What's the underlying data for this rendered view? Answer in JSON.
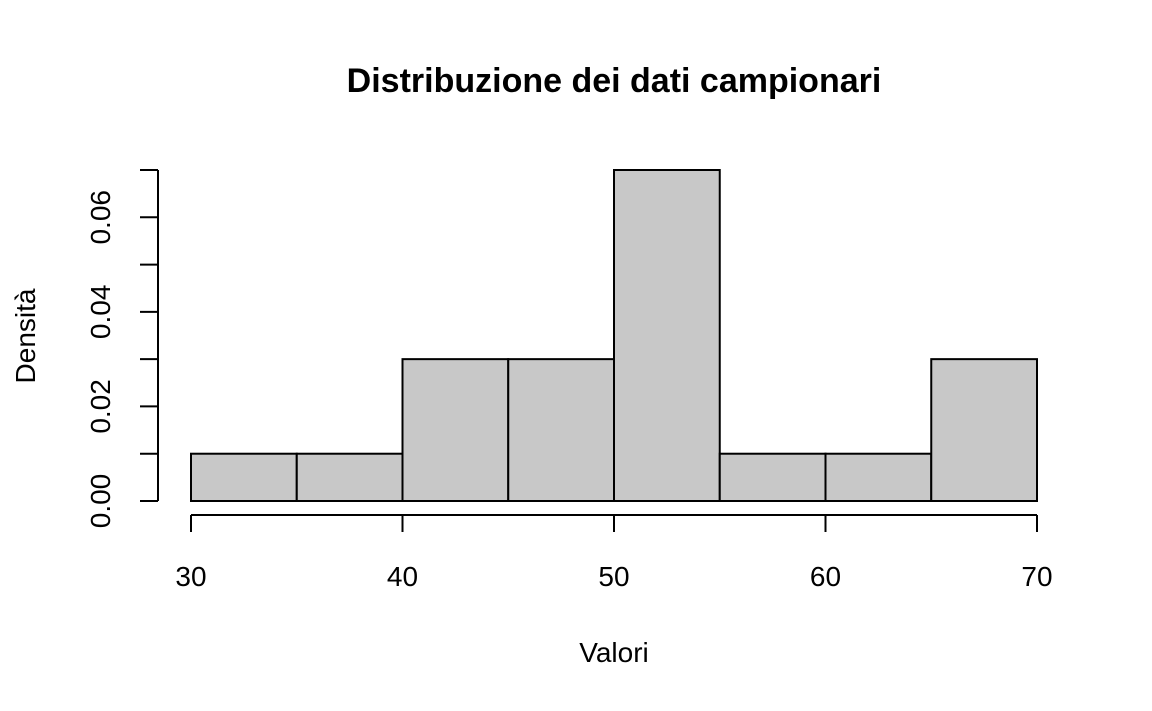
{
  "chart_data": {
    "type": "bar",
    "subtype": "histogram",
    "title": "Distribuzione dei dati campionari",
    "xlabel": "Valori",
    "ylabel": "Densità",
    "bins": [
      {
        "start": 30,
        "end": 35,
        "density": 0.01
      },
      {
        "start": 35,
        "end": 40,
        "density": 0.01
      },
      {
        "start": 40,
        "end": 45,
        "density": 0.03
      },
      {
        "start": 45,
        "end": 50,
        "density": 0.03
      },
      {
        "start": 50,
        "end": 55,
        "density": 0.07
      },
      {
        "start": 55,
        "end": 60,
        "density": 0.01
      },
      {
        "start": 60,
        "end": 65,
        "density": 0.01
      },
      {
        "start": 65,
        "end": 70,
        "density": 0.03
      }
    ],
    "xlim": [
      30,
      70
    ],
    "ylim": [
      0,
      0.07
    ],
    "x_ticks": [
      30,
      40,
      50,
      60,
      70
    ],
    "x_tick_labels": [
      "30",
      "40",
      "50",
      "60",
      "70"
    ],
    "y_ticks": [
      0,
      0.01,
      0.02,
      0.03,
      0.04,
      0.05,
      0.06,
      0.07
    ],
    "y_tick_labels": [
      "0.00",
      "",
      "0.02",
      "",
      "0.04",
      "",
      "0.06",
      ""
    ],
    "bar_color": "#c8c8c8",
    "edge_color": "#000000",
    "grid": false,
    "legend": "none"
  }
}
